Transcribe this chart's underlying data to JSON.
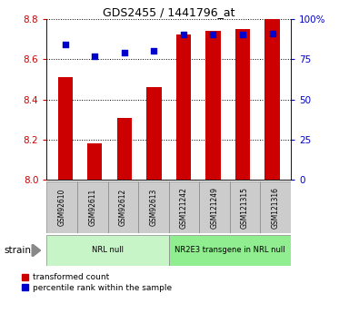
{
  "title": "GDS2455 / 1441796_at",
  "samples": [
    "GSM92610",
    "GSM92611",
    "GSM92612",
    "GSM92613",
    "GSM121242",
    "GSM121249",
    "GSM121315",
    "GSM121316"
  ],
  "transformed_counts": [
    8.51,
    8.18,
    8.31,
    8.46,
    8.72,
    8.74,
    8.75,
    8.8
  ],
  "percentile_ranks": [
    84,
    77,
    79,
    80,
    90,
    90,
    90,
    91
  ],
  "ylim_left": [
    8.0,
    8.8
  ],
  "ylim_right": [
    0,
    100
  ],
  "yticks_left": [
    8.0,
    8.2,
    8.4,
    8.6,
    8.8
  ],
  "yticks_right": [
    0,
    25,
    50,
    75,
    100
  ],
  "ytick_labels_right": [
    "0",
    "25",
    "50",
    "75",
    "100%"
  ],
  "groups": [
    {
      "label": "NRL null",
      "indices": [
        0,
        1,
        2,
        3
      ],
      "color": "#c8f5c8"
    },
    {
      "label": "NR2E3 transgene in NRL null",
      "indices": [
        4,
        5,
        6,
        7
      ],
      "color": "#90ee90"
    }
  ],
  "bar_color": "#cc0000",
  "dot_color": "#0000cc",
  "bar_width": 0.5,
  "bar_baseline": 8.0,
  "tick_color_left": "#cc0000",
  "tick_color_right": "#0000cc",
  "sample_box_color": "#cccccc",
  "legend_items": [
    "transformed count",
    "percentile rank within the sample"
  ]
}
